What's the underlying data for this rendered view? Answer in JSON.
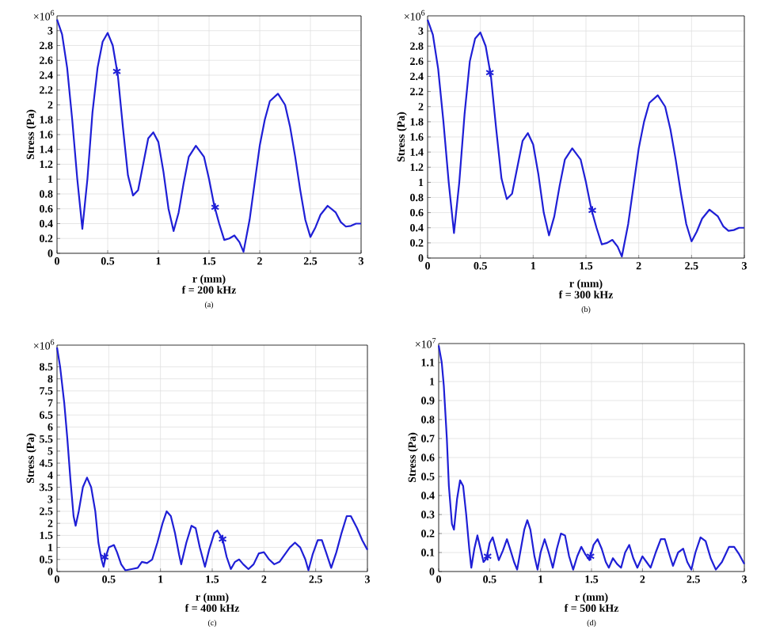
{
  "chart_data": [
    {
      "type": "line",
      "xlabel": "r (mm)",
      "ylabel": "Stress (Pa)",
      "subtitle": "f = 200 kHz",
      "annotations": [
        "×10$^{6}$",
        "(a)"
      ],
      "grid": true,
      "xlim": [
        0,
        3
      ],
      "ylim": [
        0,
        3.2
      ],
      "xticks": [
        0,
        0.5,
        1,
        1.5,
        2,
        2.5,
        3
      ],
      "yticks": [
        0,
        0.2,
        0.4,
        0.6,
        0.8,
        1,
        1.2,
        1.4,
        1.6,
        1.8,
        2,
        2.2,
        2.4,
        2.6,
        2.8,
        3
      ],
      "series": [
        {
          "color": "#1f1fd6",
          "x": [
            0,
            0.05,
            0.1,
            0.15,
            0.2,
            0.25,
            0.3,
            0.35,
            0.4,
            0.45,
            0.5,
            0.55,
            0.6,
            0.65,
            0.7,
            0.75,
            0.8,
            0.85,
            0.9,
            0.95,
            1.0,
            1.05,
            1.1,
            1.15,
            1.2,
            1.25,
            1.3,
            1.37,
            1.45,
            1.5,
            1.55,
            1.6,
            1.65,
            1.7,
            1.75,
            1.8,
            1.84,
            1.9,
            1.95,
            2.0,
            2.05,
            2.1,
            2.18,
            2.25,
            2.3,
            2.35,
            2.4,
            2.45,
            2.5,
            2.55,
            2.6,
            2.67,
            2.75,
            2.8,
            2.85,
            2.9,
            2.95,
            3.0
          ],
          "values": [
            3.15,
            2.95,
            2.5,
            1.8,
            1.0,
            0.33,
            1.0,
            1.9,
            2.5,
            2.85,
            2.97,
            2.8,
            2.4,
            1.7,
            1.05,
            0.78,
            0.85,
            1.2,
            1.55,
            1.63,
            1.5,
            1.1,
            0.6,
            0.3,
            0.55,
            0.95,
            1.3,
            1.45,
            1.3,
            1.0,
            0.65,
            0.4,
            0.18,
            0.2,
            0.24,
            0.15,
            0.02,
            0.45,
            0.95,
            1.45,
            1.8,
            2.05,
            2.15,
            2.0,
            1.7,
            1.3,
            0.85,
            0.45,
            0.22,
            0.35,
            0.52,
            0.64,
            0.55,
            0.42,
            0.36,
            0.37,
            0.4,
            0.4
          ]
        },
        {
          "type": "scatter",
          "marker": "cross",
          "color": "#1f1fd6",
          "x": [
            0.59,
            1.56
          ],
          "values": [
            2.45,
            0.62
          ]
        }
      ]
    },
    {
      "type": "line",
      "xlabel": "r (mm)",
      "ylabel": "Stress (Pa)",
      "subtitle": "f = 300 kHz",
      "annotations": [
        "×10$^{6}$",
        "(b)"
      ],
      "grid": true,
      "xlim": [
        0,
        3
      ],
      "ylim": [
        0,
        3.2
      ],
      "xticks": [
        0,
        0.5,
        1,
        1.5,
        2,
        2.5,
        3
      ],
      "yticks": [
        0,
        0.2,
        0.4,
        0.6,
        0.8,
        1,
        1.2,
        1.4,
        1.6,
        1.8,
        2,
        2.2,
        2.4,
        2.6,
        2.8,
        3
      ],
      "series": [
        {
          "color": "#1f1fd6",
          "x": [
            0,
            0.05,
            0.1,
            0.15,
            0.2,
            0.25,
            0.3,
            0.35,
            0.4,
            0.45,
            0.5,
            0.55,
            0.6,
            0.65,
            0.7,
            0.75,
            0.8,
            0.85,
            0.9,
            0.95,
            1.0,
            1.05,
            1.1,
            1.15,
            1.2,
            1.25,
            1.3,
            1.37,
            1.45,
            1.5,
            1.55,
            1.6,
            1.65,
            1.7,
            1.75,
            1.8,
            1.84,
            1.9,
            1.95,
            2.0,
            2.05,
            2.1,
            2.18,
            2.25,
            2.3,
            2.35,
            2.4,
            2.45,
            2.5,
            2.55,
            2.6,
            2.67,
            2.75,
            2.8,
            2.85,
            2.9,
            2.95,
            3.0
          ],
          "values": [
            3.15,
            2.95,
            2.5,
            1.8,
            1.0,
            0.33,
            1.0,
            1.9,
            2.6,
            2.9,
            2.98,
            2.8,
            2.4,
            1.7,
            1.05,
            0.78,
            0.85,
            1.2,
            1.55,
            1.65,
            1.5,
            1.1,
            0.6,
            0.3,
            0.55,
            0.95,
            1.3,
            1.45,
            1.3,
            1.0,
            0.65,
            0.4,
            0.18,
            0.2,
            0.24,
            0.15,
            0.02,
            0.45,
            0.95,
            1.45,
            1.8,
            2.05,
            2.15,
            2.0,
            1.7,
            1.3,
            0.85,
            0.45,
            0.22,
            0.35,
            0.52,
            0.64,
            0.55,
            0.42,
            0.36,
            0.37,
            0.4,
            0.4
          ]
        },
        {
          "type": "scatter",
          "marker": "cross",
          "color": "#1f1fd6",
          "x": [
            0.59,
            1.56
          ],
          "values": [
            2.45,
            0.63
          ]
        }
      ]
    },
    {
      "type": "line",
      "xlabel": "r (mm)",
      "ylabel": "Stress (Pa)",
      "subtitle": "f = 400 kHz",
      "annotations": [
        "×10$^{6}$",
        "(c)"
      ],
      "grid": true,
      "xlim": [
        0,
        3
      ],
      "ylim": [
        0,
        9.4
      ],
      "xticks": [
        0,
        0.5,
        1,
        1.5,
        2,
        2.5,
        3
      ],
      "yticks": [
        0,
        0.5,
        1,
        1.5,
        2,
        2.5,
        3,
        3.5,
        4,
        4.5,
        5,
        5.5,
        6,
        6.5,
        7,
        7.5,
        8,
        8.5
      ],
      "series": [
        {
          "color": "#1f1fd6",
          "x": [
            0,
            0.03,
            0.07,
            0.1,
            0.13,
            0.16,
            0.18,
            0.21,
            0.25,
            0.29,
            0.33,
            0.37,
            0.4,
            0.43,
            0.45,
            0.47,
            0.5,
            0.55,
            0.58,
            0.62,
            0.66,
            0.72,
            0.78,
            0.82,
            0.87,
            0.92,
            0.97,
            1.02,
            1.06,
            1.1,
            1.14,
            1.18,
            1.2,
            1.25,
            1.3,
            1.34,
            1.38,
            1.43,
            1.47,
            1.52,
            1.55,
            1.6,
            1.64,
            1.68,
            1.72,
            1.76,
            1.8,
            1.85,
            1.9,
            1.95,
            2.0,
            2.05,
            2.1,
            2.15,
            2.2,
            2.25,
            2.3,
            2.35,
            2.4,
            2.43,
            2.47,
            2.52,
            2.56,
            2.6,
            2.65,
            2.7,
            2.75,
            2.8,
            2.84,
            2.9,
            2.95,
            3.0
          ],
          "values": [
            9.3,
            8.5,
            7,
            5.5,
            3.8,
            2.3,
            1.9,
            2.5,
            3.5,
            3.9,
            3.5,
            2.5,
            1.2,
            0.5,
            0.2,
            0.6,
            1.0,
            1.1,
            0.8,
            0.3,
            0.05,
            0.1,
            0.15,
            0.4,
            0.35,
            0.5,
            1.2,
            2.0,
            2.5,
            2.3,
            1.6,
            0.7,
            0.3,
            1.2,
            1.9,
            1.8,
            1.0,
            0.2,
            0.9,
            1.6,
            1.7,
            1.35,
            0.6,
            0.1,
            0.4,
            0.5,
            0.3,
            0.1,
            0.3,
            0.75,
            0.8,
            0.5,
            0.3,
            0.4,
            0.7,
            1.0,
            1.2,
            1.0,
            0.5,
            0.05,
            0.7,
            1.3,
            1.3,
            0.8,
            0.15,
            0.8,
            1.6,
            2.3,
            2.3,
            1.8,
            1.3,
            0.9
          ]
        },
        {
          "type": "scatter",
          "marker": "cross",
          "color": "#1f1fd6",
          "x": [
            0.46,
            1.6
          ],
          "values": [
            0.6,
            1.35
          ]
        }
      ]
    },
    {
      "type": "line",
      "xlabel": "r (mm)",
      "ylabel": "Stress (Pa)",
      "subtitle": "f = 500 kHz",
      "annotations": [
        "×10$^{7}$",
        "(d)"
      ],
      "grid": true,
      "xlim": [
        0,
        3
      ],
      "ylim": [
        0,
        1.2
      ],
      "xticks": [
        0,
        0.5,
        1,
        1.5,
        2,
        2.5,
        3
      ],
      "yticks": [
        0,
        0.1,
        0.2,
        0.3,
        0.4,
        0.5,
        0.6,
        0.7,
        0.8,
        0.9,
        1,
        1.1
      ],
      "series": [
        {
          "color": "#1f1fd6",
          "x": [
            0,
            0.03,
            0.05,
            0.08,
            0.1,
            0.13,
            0.15,
            0.18,
            0.21,
            0.24,
            0.27,
            0.3,
            0.32,
            0.35,
            0.38,
            0.41,
            0.44,
            0.47,
            0.5,
            0.53,
            0.56,
            0.59,
            0.63,
            0.67,
            0.7,
            0.74,
            0.77,
            0.8,
            0.84,
            0.87,
            0.9,
            0.94,
            0.97,
            1.0,
            1.04,
            1.08,
            1.12,
            1.16,
            1.2,
            1.24,
            1.28,
            1.32,
            1.36,
            1.4,
            1.44,
            1.48,
            1.52,
            1.56,
            1.6,
            1.64,
            1.67,
            1.71,
            1.75,
            1.79,
            1.83,
            1.87,
            1.91,
            1.95,
            2.0,
            2.04,
            2.08,
            2.13,
            2.18,
            2.22,
            2.27,
            2.3,
            2.35,
            2.4,
            2.44,
            2.48,
            2.52,
            2.57,
            2.62,
            2.67,
            2.72,
            2.78,
            2.85,
            2.9,
            2.95,
            3.0
          ],
          "values": [
            1.19,
            1.1,
            0.98,
            0.7,
            0.45,
            0.25,
            0.22,
            0.38,
            0.48,
            0.45,
            0.3,
            0.12,
            0.02,
            0.12,
            0.19,
            0.12,
            0.05,
            0.07,
            0.15,
            0.18,
            0.12,
            0.06,
            0.11,
            0.17,
            0.12,
            0.05,
            0.01,
            0.1,
            0.22,
            0.27,
            0.22,
            0.08,
            0.01,
            0.1,
            0.17,
            0.1,
            0.02,
            0.12,
            0.2,
            0.19,
            0.08,
            0.01,
            0.08,
            0.13,
            0.09,
            0.06,
            0.14,
            0.17,
            0.12,
            0.05,
            0.02,
            0.07,
            0.04,
            0.02,
            0.1,
            0.14,
            0.07,
            0.02,
            0.08,
            0.05,
            0.02,
            0.1,
            0.17,
            0.17,
            0.08,
            0.03,
            0.1,
            0.12,
            0.05,
            0.01,
            0.1,
            0.18,
            0.16,
            0.07,
            0.01,
            0.05,
            0.13,
            0.13,
            0.09,
            0.04
          ]
        },
        {
          "type": "scatter",
          "marker": "cross",
          "color": "#1f1fd6",
          "x": [
            0.48,
            1.49
          ],
          "values": [
            0.08,
            0.08
          ]
        }
      ]
    }
  ]
}
